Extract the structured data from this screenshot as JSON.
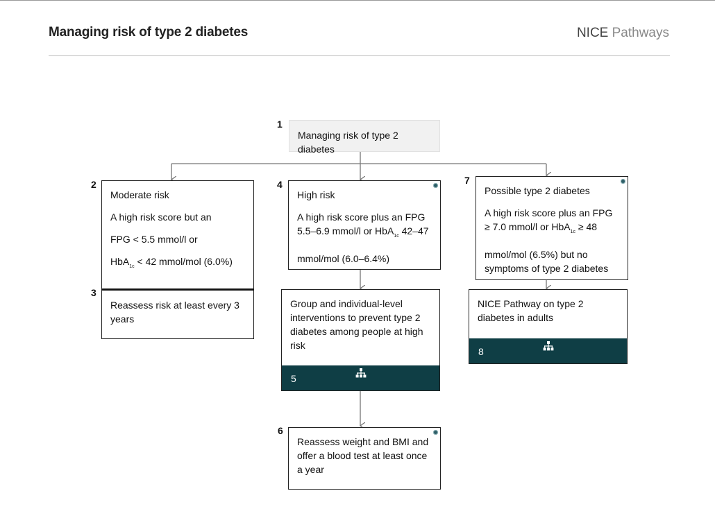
{
  "header": {
    "title": "Managing risk of type 2 diabetes",
    "brand": "NICE",
    "brand_sub": "Pathways"
  },
  "nodes": {
    "n1": {
      "num": "1",
      "text": "Managing risk of type 2 diabetes"
    },
    "n2": {
      "num": "2",
      "title": "Moderate risk",
      "line1": "A high risk score but an",
      "line2": "FPG < 5.5 mmol/l or",
      "line3_pre": "HbA",
      "line3_sub": "1c",
      "line3_post": " < 42 mmol/mol (6.0%)"
    },
    "n3": {
      "num": "3",
      "text": "Reassess risk at least every 3 years"
    },
    "n4": {
      "num": "4",
      "title": "High risk",
      "line1_pre": "A high risk score plus an FPG 5.5–6.9 mmol/l or HbA",
      "line1_sub": "1c",
      "line1_post": " 42–47",
      "line2": "mmol/mol (6.0–6.4%)"
    },
    "n5": {
      "num": "5",
      "text": "Group and individual-level interventions to prevent type 2 diabetes among people at high risk"
    },
    "n6": {
      "num": "6",
      "text": "Reassess weight and BMI and offer a blood test at least once a year"
    },
    "n7": {
      "num": "7",
      "title": "Possible type 2 diabetes",
      "line1_pre": "A high risk score plus an FPG ≥ 7.0 mmol/l or HbA",
      "line1_sub": "1c",
      "line1_post": " ≥ 48",
      "line2": "mmol/mol (6.5%) but no symptoms of type 2 diabetes"
    },
    "n8": {
      "num": "8",
      "text": "NICE Pathway on type 2 diabetes in adults"
    }
  },
  "icons": {
    "status_dot": "status-dot-icon",
    "pathway": "pathway-hierarchy-icon"
  },
  "colors": {
    "footer_bar": "#0f3e45",
    "node_gray": "#f1f1f1",
    "connector": "#777777"
  }
}
